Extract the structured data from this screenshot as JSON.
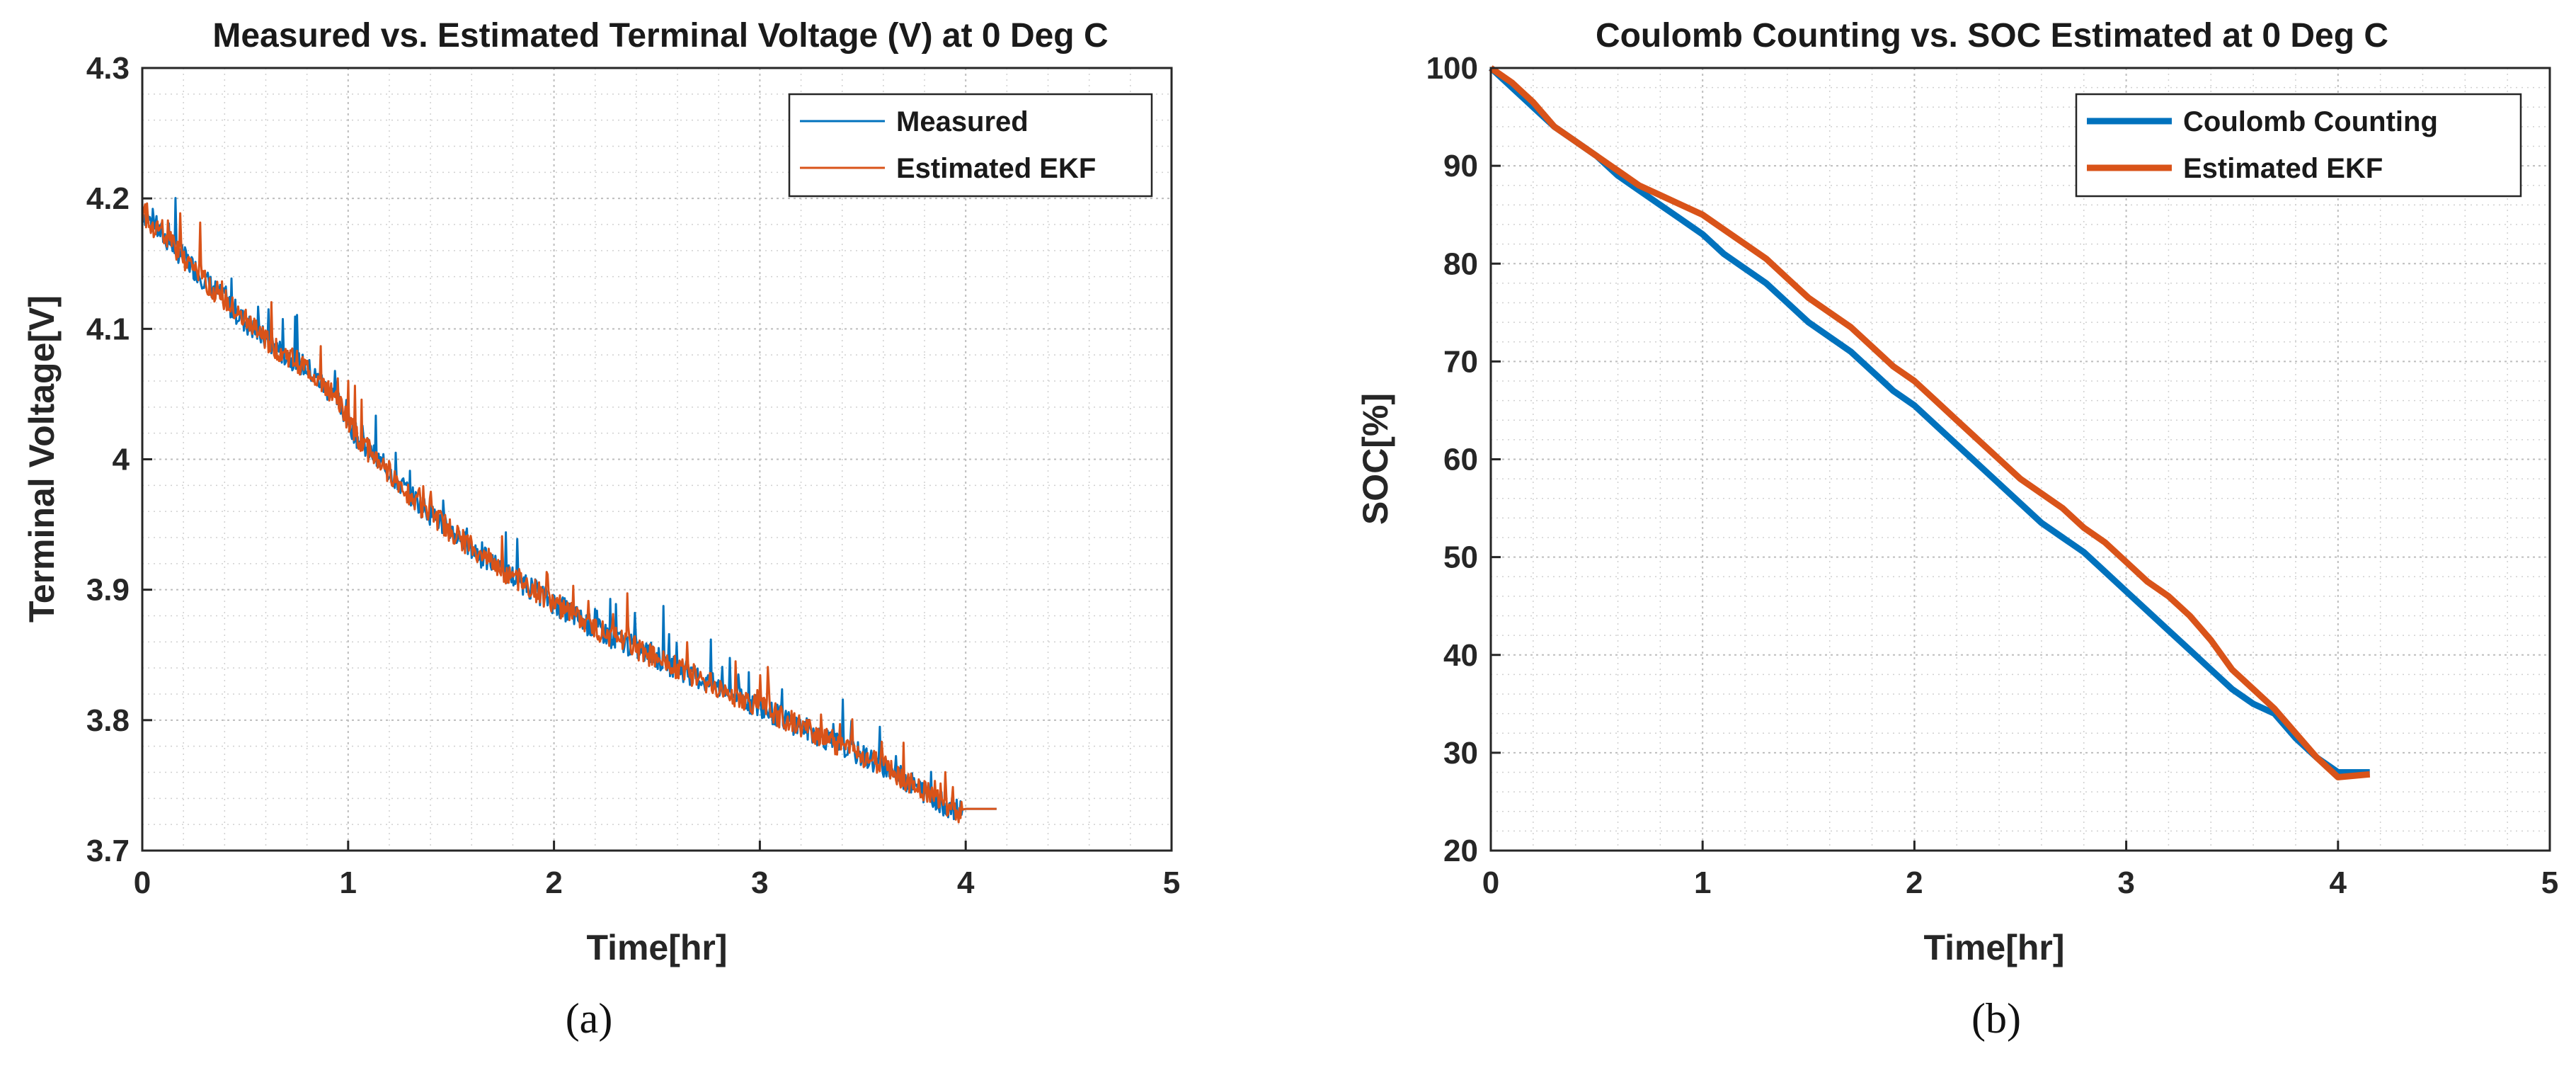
{
  "chart_data": [
    {
      "type": "line",
      "title": "Measured vs. Estimated Terminal Voltage (V) at 0 Deg C",
      "xlabel": "Time[hr]",
      "ylabel": "Terminal Voltage[V]",
      "xlim": [
        0,
        5
      ],
      "ylim": [
        3.7,
        4.3
      ],
      "xticks": [
        "0",
        "1",
        "2",
        "3",
        "4",
        "5"
      ],
      "yticks": [
        "3.7",
        "3.8",
        "3.9",
        "4",
        "4.1",
        "4.2",
        "4.3"
      ],
      "grid": true,
      "legend_location": "top-right",
      "caption": "(a)",
      "series": [
        {
          "name": "Measured",
          "color": "#0072BD",
          "x": [
            0,
            0.05,
            0.2,
            0.35,
            0.5,
            0.65,
            0.8,
            0.95,
            1.05,
            1.2,
            1.35,
            1.5,
            1.65,
            1.8,
            2.0,
            2.2,
            2.4,
            2.6,
            2.8,
            3.0,
            3.2,
            3.4,
            3.6,
            3.8,
            3.95,
            4.0,
            4.15
          ],
          "y": [
            4.19,
            4.18,
            4.155,
            4.13,
            4.105,
            4.085,
            4.07,
            4.045,
            4.015,
            3.99,
            3.965,
            3.945,
            3.925,
            3.91,
            3.89,
            3.87,
            3.855,
            3.84,
            3.825,
            3.81,
            3.795,
            3.78,
            3.765,
            3.745,
            3.73,
            3.732,
            3.732
          ]
        },
        {
          "name": "Estimated EKF",
          "color": "#D95319",
          "x": [
            0,
            0.05,
            0.2,
            0.35,
            0.5,
            0.65,
            0.8,
            0.95,
            1.05,
            1.2,
            1.35,
            1.5,
            1.65,
            1.8,
            2.0,
            2.2,
            2.4,
            2.6,
            2.8,
            3.0,
            3.2,
            3.4,
            3.6,
            3.8,
            3.95,
            4.0,
            4.15
          ],
          "y": [
            4.19,
            4.18,
            4.155,
            4.13,
            4.105,
            4.085,
            4.07,
            4.045,
            4.015,
            3.99,
            3.965,
            3.945,
            3.925,
            3.91,
            3.89,
            3.87,
            3.855,
            3.84,
            3.825,
            3.81,
            3.795,
            3.78,
            3.765,
            3.745,
            3.73,
            3.732,
            3.732
          ]
        }
      ]
    },
    {
      "type": "line",
      "title": "Coulomb Counting vs. SOC Estimated at 0 Deg C",
      "xlabel": "Time[hr]",
      "ylabel": "SOC[%]",
      "xlim": [
        0,
        5
      ],
      "ylim": [
        20,
        100
      ],
      "xticks": [
        "0",
        "1",
        "2",
        "3",
        "4",
        "5"
      ],
      "yticks": [
        "20",
        "30",
        "40",
        "50",
        "60",
        "70",
        "80",
        "90",
        "100"
      ],
      "grid": true,
      "legend_location": "top-right",
      "caption": "(b)",
      "series": [
        {
          "name": "Coulomb Counting",
          "color": "#0072BD",
          "x": [
            0,
            0.1,
            0.2,
            0.3,
            0.4,
            0.5,
            0.6,
            0.7,
            0.8,
            0.9,
            1.0,
            1.1,
            1.2,
            1.3,
            1.4,
            1.5,
            1.6,
            1.7,
            1.8,
            1.9,
            2.0,
            2.1,
            2.2,
            2.3,
            2.4,
            2.5,
            2.6,
            2.7,
            2.8,
            2.9,
            3.0,
            3.1,
            3.2,
            3.3,
            3.4,
            3.5,
            3.6,
            3.7,
            3.8,
            3.9,
            4.0,
            4.15
          ],
          "y": [
            100,
            98,
            96,
            94,
            92.5,
            91,
            89,
            87.5,
            86,
            84.5,
            83,
            81,
            79.5,
            78,
            76,
            74,
            72.5,
            71,
            69,
            67,
            65.5,
            63.5,
            61.5,
            59.5,
            57.5,
            55.5,
            53.5,
            52,
            50.5,
            48.5,
            46.5,
            44.5,
            42.5,
            40.5,
            38.5,
            36.5,
            35,
            34,
            31.5,
            29.5,
            28,
            28
          ]
        },
        {
          "name": "Estimated EKF",
          "color": "#D95319",
          "x": [
            0,
            0.1,
            0.2,
            0.3,
            0.4,
            0.5,
            0.6,
            0.7,
            0.8,
            0.9,
            1.0,
            1.1,
            1.2,
            1.3,
            1.4,
            1.5,
            1.6,
            1.7,
            1.8,
            1.9,
            2.0,
            2.1,
            2.2,
            2.3,
            2.4,
            2.5,
            2.6,
            2.7,
            2.8,
            2.9,
            3.0,
            3.1,
            3.2,
            3.3,
            3.4,
            3.5,
            3.6,
            3.7,
            3.8,
            3.9,
            4.0,
            4.15
          ],
          "y": [
            100,
            98.5,
            96.5,
            94,
            92.5,
            91,
            89.5,
            88,
            87,
            86,
            85,
            83.5,
            82,
            80.5,
            78.5,
            76.5,
            75,
            73.5,
            71.5,
            69.5,
            68,
            66,
            64,
            62,
            60,
            58,
            56.5,
            55,
            53,
            51.5,
            49.5,
            47.5,
            46,
            44,
            41.5,
            38.5,
            36.5,
            34.5,
            32,
            29.5,
            27.5,
            27.8
          ]
        }
      ]
    }
  ]
}
